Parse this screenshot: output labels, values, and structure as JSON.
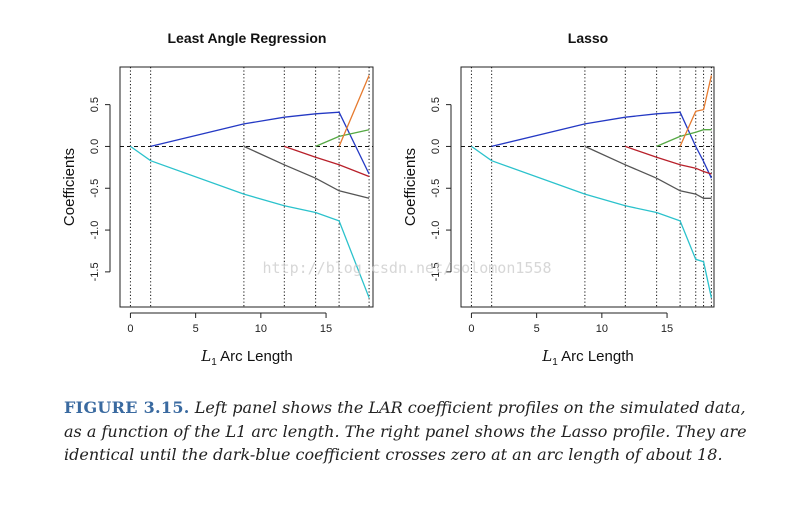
{
  "chart_data": [
    {
      "type": "line",
      "title": "Least Angle Regression",
      "xlabel": "L1 Arc Length",
      "ylabel": "Coefficients",
      "xlim": [
        -0.8,
        18.6
      ],
      "ylim": [
        -1.92,
        0.95
      ],
      "xticks": [
        0,
        5,
        10,
        15
      ],
      "yticks": [
        -1.5,
        -1.0,
        -0.5,
        0.0,
        0.5
      ],
      "ytick_labels": [
        "-1.5",
        "-1.0",
        "-0.5",
        "0.0",
        "0.5"
      ],
      "steps": [
        0,
        1.55,
        8.7,
        11.8,
        14.2,
        16.0,
        18.3
      ],
      "zero_line": true,
      "series": [
        {
          "color": "#2bc2cc",
          "x": [
            0,
            1.55,
            8.7,
            11.8,
            14.2,
            16.0,
            18.3
          ],
          "y": [
            0,
            -0.17,
            -0.57,
            -0.71,
            -0.79,
            -0.89,
            -1.81
          ]
        },
        {
          "color": "#2439c4",
          "x": [
            1.55,
            8.7,
            11.8,
            14.2,
            16.0,
            18.3
          ],
          "y": [
            0,
            0.27,
            0.35,
            0.39,
            0.41,
            -0.33
          ]
        },
        {
          "color": "#555555",
          "x": [
            8.7,
            11.8,
            14.2,
            16.0,
            18.3
          ],
          "y": [
            0,
            -0.22,
            -0.38,
            -0.53,
            -0.62
          ]
        },
        {
          "color": "#b8202a",
          "x": [
            11.8,
            14.2,
            16.0,
            18.3
          ],
          "y": [
            0,
            -0.13,
            -0.22,
            -0.36
          ]
        },
        {
          "color": "#55a844",
          "x": [
            14.2,
            16.0,
            18.3
          ],
          "y": [
            0,
            0.12,
            0.2
          ]
        },
        {
          "color": "#e67a2e",
          "x": [
            16.0,
            18.3
          ],
          "y": [
            0,
            0.85
          ]
        }
      ]
    },
    {
      "type": "line",
      "title": "Lasso",
      "xlabel": "L1 Arc Length",
      "ylabel": "Coefficients",
      "xlim": [
        -0.8,
        18.6
      ],
      "ylim": [
        -1.92,
        0.95
      ],
      "xticks": [
        0,
        5,
        10,
        15
      ],
      "yticks": [
        -1.5,
        -1.0,
        -0.5,
        0.0,
        0.5
      ],
      "ytick_labels": [
        "-1.5",
        "-1.0",
        "-0.5",
        "0.0",
        "0.5"
      ],
      "steps": [
        0,
        1.55,
        8.7,
        11.8,
        14.2,
        16.0,
        17.2,
        17.8,
        18.4
      ],
      "zero_line": true,
      "series": [
        {
          "color": "#2bc2cc",
          "x": [
            0,
            1.55,
            8.7,
            11.8,
            14.2,
            16.0,
            17.2,
            17.8,
            18.4
          ],
          "y": [
            0,
            -0.17,
            -0.57,
            -0.71,
            -0.79,
            -0.89,
            -1.35,
            -1.38,
            -1.81
          ]
        },
        {
          "color": "#2439c4",
          "x": [
            1.55,
            8.7,
            11.8,
            14.2,
            16.0,
            17.2,
            17.8,
            18.4
          ],
          "y": [
            0,
            0.27,
            0.35,
            0.39,
            0.41,
            0,
            -0.18,
            -0.38
          ]
        },
        {
          "color": "#555555",
          "x": [
            8.7,
            11.8,
            14.2,
            16.0,
            17.2,
            17.8,
            18.4
          ],
          "y": [
            0,
            -0.22,
            -0.38,
            -0.53,
            -0.57,
            -0.62,
            -0.62
          ]
        },
        {
          "color": "#b8202a",
          "x": [
            11.8,
            14.2,
            16.0,
            17.2,
            17.8,
            18.4
          ],
          "y": [
            0,
            -0.13,
            -0.22,
            -0.26,
            -0.3,
            -0.33
          ]
        },
        {
          "color": "#55a844",
          "x": [
            14.2,
            16.0,
            17.2,
            17.8,
            18.4
          ],
          "y": [
            0,
            0.12,
            0.17,
            0.2,
            0.2
          ]
        },
        {
          "color": "#e67a2e",
          "x": [
            16.0,
            17.2,
            17.8,
            18.4
          ],
          "y": [
            0,
            0.42,
            0.44,
            0.85
          ]
        }
      ]
    }
  ],
  "caption": {
    "label": "FIGURE 3.15.",
    "text": "Left panel shows the LAR coefficient profiles on the simulated data, as a function of the L1 arc length. The right panel shows the Lasso profile. They are identical until the dark-blue coefficient crosses zero at an arc length of about 18."
  },
  "watermark": "http://blog.csdn.net/solomon1558"
}
